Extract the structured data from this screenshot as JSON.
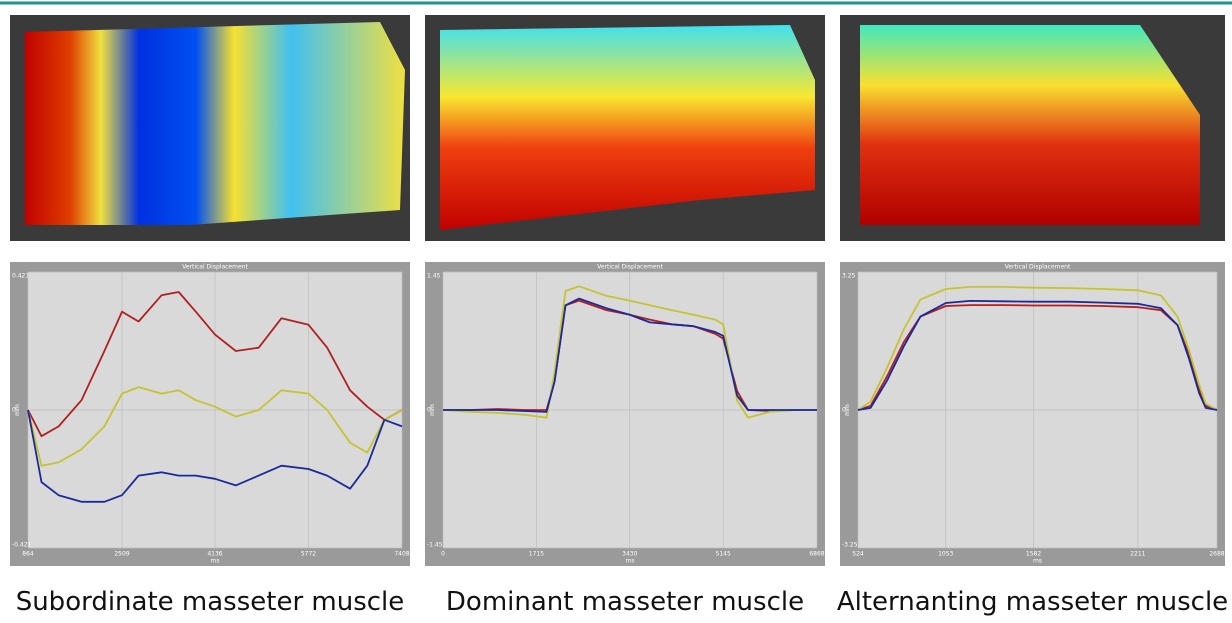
{
  "chart_data": [
    {
      "type": "line",
      "title": "Vertical Displacement",
      "caption": "Subordinate masseter muscle",
      "xlabel": "ms",
      "ylabel": "mm",
      "x": [
        864,
        1100,
        1400,
        1800,
        2200,
        2509,
        2800,
        3200,
        3500,
        3800,
        4136,
        4500,
        4900,
        5300,
        5772,
        6100,
        6500,
        6800,
        7100,
        7408
      ],
      "xlim": [
        864,
        7408
      ],
      "xticks": [
        864,
        2509,
        4136,
        5772,
        7408
      ],
      "ylim": [
        -0.421,
        0.421
      ],
      "yticks": [
        0.421,
        0,
        -0.421
      ],
      "grid": true,
      "series": [
        {
          "name": "red",
          "color": "#b02020",
          "values": [
            0,
            -0.08,
            -0.05,
            0.03,
            0.18,
            0.3,
            0.27,
            0.35,
            0.36,
            0.3,
            0.23,
            0.18,
            0.19,
            0.28,
            0.26,
            0.19,
            0.06,
            0.01,
            -0.03,
            0
          ]
        },
        {
          "name": "yellow",
          "color": "#c4c430",
          "values": [
            0,
            -0.17,
            -0.16,
            -0.12,
            -0.05,
            0.05,
            0.07,
            0.05,
            0.06,
            0.03,
            0.01,
            -0.02,
            0.0,
            0.06,
            0.05,
            0.0,
            -0.1,
            -0.13,
            -0.03,
            0
          ]
        },
        {
          "name": "blue",
          "color": "#1a2a9a",
          "values": [
            0,
            -0.22,
            -0.26,
            -0.28,
            -0.28,
            -0.26,
            -0.2,
            -0.19,
            -0.2,
            -0.2,
            -0.21,
            -0.23,
            -0.2,
            -0.17,
            -0.18,
            -0.2,
            -0.24,
            -0.17,
            -0.03,
            -0.05
          ]
        }
      ]
    },
    {
      "type": "line",
      "title": "Vertical Displacement",
      "caption": "Dominant masseter muscle",
      "xlabel": "ms",
      "ylabel": "mm",
      "x": [
        0,
        500,
        1000,
        1500,
        1900,
        2050,
        2250,
        2500,
        3000,
        3430,
        3800,
        4200,
        4600,
        5000,
        5145,
        5400,
        5600,
        6000,
        6500,
        6868
      ],
      "xlim": [
        0,
        6868
      ],
      "xticks": [
        0,
        1715,
        3430,
        5145,
        6868
      ],
      "ylim": [
        -1.45,
        1.45
      ],
      "yticks": [
        1.45,
        0,
        -1.45
      ],
      "grid": true,
      "series": [
        {
          "name": "red",
          "color": "#b02020",
          "values": [
            0,
            0,
            0.01,
            0,
            0,
            0.3,
            1.1,
            1.15,
            1.05,
            1.0,
            0.95,
            0.9,
            0.88,
            0.8,
            0.75,
            0.2,
            0,
            -0.01,
            0,
            0
          ]
        },
        {
          "name": "yellow",
          "color": "#c4c430",
          "values": [
            0,
            -0.02,
            -0.03,
            -0.05,
            -0.08,
            0.4,
            1.25,
            1.3,
            1.2,
            1.15,
            1.1,
            1.05,
            1.0,
            0.95,
            0.9,
            0.1,
            -0.08,
            -0.02,
            0,
            0
          ]
        },
        {
          "name": "blue",
          "color": "#1a2a9a",
          "values": [
            0,
            0,
            0,
            -0.01,
            -0.02,
            0.3,
            1.1,
            1.17,
            1.07,
            1.0,
            0.92,
            0.9,
            0.88,
            0.82,
            0.78,
            0.15,
            0,
            0,
            0,
            0
          ]
        }
      ]
    },
    {
      "type": "line",
      "title": "Vertical Displacement",
      "caption": "Alternanting masseter muscle",
      "xlabel": "ms",
      "ylabel": "mm",
      "x": [
        524,
        600,
        700,
        800,
        900,
        1053,
        1200,
        1400,
        1582,
        1800,
        2000,
        2211,
        2350,
        2450,
        2520,
        2580,
        2620,
        2688
      ],
      "xlim": [
        524,
        2688
      ],
      "xticks": [
        524,
        1053,
        1582,
        2211,
        2688
      ],
      "ylim": [
        -3.25,
        3.25
      ],
      "yticks": [
        3.25,
        0,
        -3.25
      ],
      "grid": true,
      "series": [
        {
          "name": "red",
          "color": "#b02020",
          "values": [
            0,
            0.1,
            0.8,
            1.6,
            2.2,
            2.45,
            2.47,
            2.47,
            2.46,
            2.46,
            2.45,
            2.42,
            2.35,
            2.0,
            1.3,
            0.5,
            0.1,
            0
          ]
        },
        {
          "name": "yellow",
          "color": "#c4c430",
          "values": [
            0,
            0.2,
            1.0,
            1.9,
            2.6,
            2.85,
            2.9,
            2.9,
            2.88,
            2.87,
            2.85,
            2.82,
            2.7,
            2.2,
            1.4,
            0.6,
            0.15,
            0
          ]
        },
        {
          "name": "blue",
          "color": "#1a2a9a",
          "values": [
            0,
            0.05,
            0.7,
            1.5,
            2.2,
            2.52,
            2.57,
            2.56,
            2.55,
            2.55,
            2.53,
            2.5,
            2.4,
            2.0,
            1.2,
            0.4,
            0.05,
            0
          ]
        }
      ]
    }
  ]
}
